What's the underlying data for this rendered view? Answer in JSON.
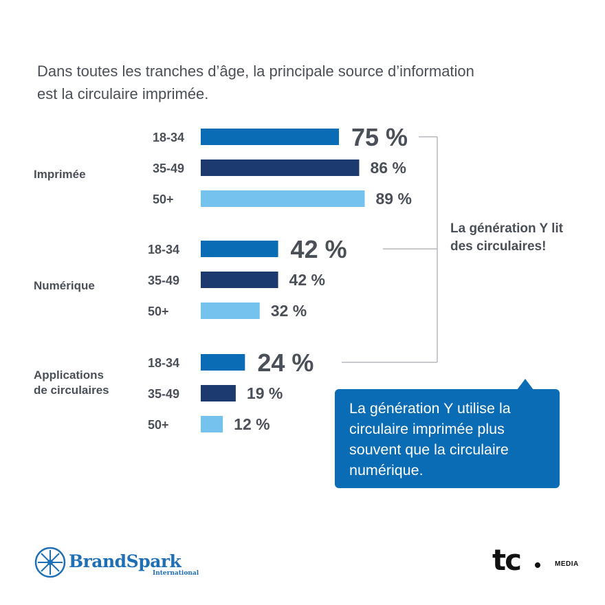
{
  "title": "Dans toutes les tranches d’âge, la principale source d’information est la circulaire imprimée.",
  "side_note": "La génération Y lit des circulaires!",
  "callout": "La génération Y utilise la circulaire imprimée plus souvent que la circulaire numérique.",
  "logos": {
    "brandspark_name": "BrandSpark",
    "brandspark_sub": "International",
    "tc_mark": "tc",
    "tc_media": "MEDIA"
  },
  "colors": {
    "age_18_34": "#0a6cb5",
    "age_35_49": "#1c3a6e",
    "age_50_plus": "#76c2ef",
    "text": "#4a4f58",
    "connector": "#b5b8bd"
  },
  "chart_data": {
    "type": "bar",
    "orientation": "horizontal",
    "unit": "%",
    "groups": [
      {
        "label": "Imprimée",
        "bars": [
          {
            "age": "18-34",
            "value": 75,
            "label": "75 %",
            "highlight": true
          },
          {
            "age": "35-49",
            "value": 86,
            "label": "86 %",
            "highlight": false
          },
          {
            "age": "50+",
            "value": 89,
            "label": "89 %",
            "highlight": false
          }
        ]
      },
      {
        "label": "Numérique",
        "bars": [
          {
            "age": "18-34",
            "value": 42,
            "label": "42 %",
            "highlight": true
          },
          {
            "age": "35-49",
            "value": 42,
            "label": "42 %",
            "highlight": false
          },
          {
            "age": "50+",
            "value": 32,
            "label": "32 %",
            "highlight": false
          }
        ]
      },
      {
        "label": "Applications de circulaires",
        "bars": [
          {
            "age": "18-34",
            "value": 24,
            "label": "24 %",
            "highlight": true
          },
          {
            "age": "35-49",
            "value": 19,
            "label": "19 %",
            "highlight": false
          },
          {
            "age": "50+",
            "value": 12,
            "label": "12 %",
            "highlight": false
          }
        ]
      }
    ]
  }
}
